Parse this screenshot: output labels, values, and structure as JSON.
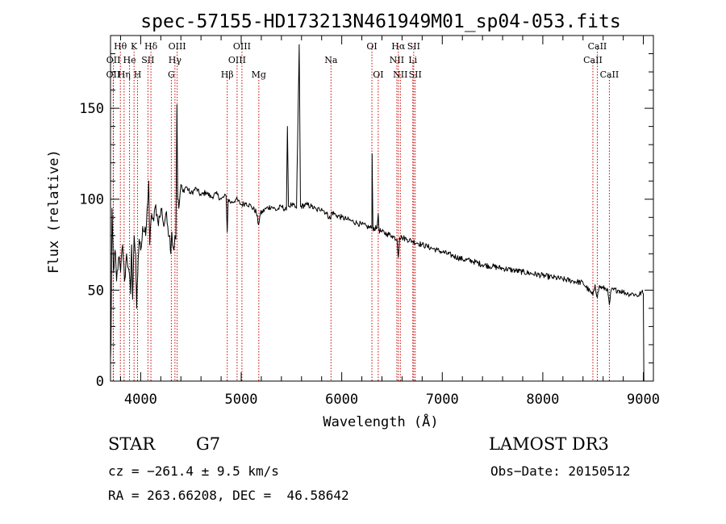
{
  "chart_data": {
    "type": "line",
    "title": "spec-57155-HD173213N461949M01_sp04-053.fits",
    "xlabel": "Wavelength (Å)",
    "ylabel": "Flux (relative)",
    "xlim": [
      3700,
      9100
    ],
    "ylim": [
      0,
      190
    ],
    "x_ticks": [
      4000,
      5000,
      6000,
      7000,
      8000,
      9000
    ],
    "y_ticks": [
      0,
      50,
      100,
      150
    ],
    "grid": false,
    "line_color": "#000000",
    "marker_color": "#cc0000",
    "series": [
      {
        "name": "flux",
        "points": [
          [
            3700,
            12
          ],
          [
            3705,
            22
          ],
          [
            3715,
            95
          ],
          [
            3730,
            60
          ],
          [
            3745,
            72
          ],
          [
            3760,
            55
          ],
          [
            3780,
            68
          ],
          [
            3800,
            60
          ],
          [
            3820,
            75
          ],
          [
            3840,
            55
          ],
          [
            3860,
            70
          ],
          [
            3880,
            62
          ],
          [
            3900,
            48
          ],
          [
            3910,
            75
          ],
          [
            3920,
            45
          ],
          [
            3935,
            80
          ],
          [
            3950,
            70
          ],
          [
            3960,
            40
          ],
          [
            3970,
            58
          ],
          [
            3985,
            78
          ],
          [
            4000,
            72
          ],
          [
            4020,
            85
          ],
          [
            4050,
            80
          ],
          [
            4070,
            98
          ],
          [
            4080,
            110
          ],
          [
            4090,
            75
          ],
          [
            4110,
            92
          ],
          [
            4130,
            88
          ],
          [
            4150,
            97
          ],
          [
            4170,
            88
          ],
          [
            4190,
            90
          ],
          [
            4210,
            95
          ],
          [
            4230,
            85
          ],
          [
            4250,
            92
          ],
          [
            4270,
            85
          ],
          [
            4290,
            80
          ],
          [
            4300,
            70
          ],
          [
            4310,
            82
          ],
          [
            4330,
            72
          ],
          [
            4340,
            80
          ],
          [
            4350,
            78
          ],
          [
            4360,
            152
          ],
          [
            4368,
            100
          ],
          [
            4380,
            95
          ],
          [
            4400,
            108
          ],
          [
            4420,
            104
          ],
          [
            4450,
            107
          ],
          [
            4500,
            103
          ],
          [
            4550,
            106
          ],
          [
            4600,
            102
          ],
          [
            4650,
            104
          ],
          [
            4700,
            101
          ],
          [
            4750,
            103
          ],
          [
            4800,
            100
          ],
          [
            4850,
            102
          ],
          [
            4861,
            82
          ],
          [
            4870,
            100
          ],
          [
            4900,
            98
          ],
          [
            4950,
            100
          ],
          [
            5000,
            97
          ],
          [
            5050,
            98
          ],
          [
            5100,
            96
          ],
          [
            5150,
            93
          ],
          [
            5172,
            86
          ],
          [
            5190,
            92
          ],
          [
            5250,
            95
          ],
          [
            5300,
            96
          ],
          [
            5350,
            94
          ],
          [
            5400,
            96
          ],
          [
            5450,
            94
          ],
          [
            5460,
            140
          ],
          [
            5470,
            96
          ],
          [
            5500,
            97
          ],
          [
            5550,
            95
          ],
          [
            5577,
            185
          ],
          [
            5590,
            96
          ],
          [
            5650,
            97
          ],
          [
            5700,
            96
          ],
          [
            5750,
            94
          ],
          [
            5800,
            95
          ],
          [
            5850,
            92
          ],
          [
            5890,
            89
          ],
          [
            5900,
            93
          ],
          [
            5950,
            91
          ],
          [
            6000,
            90
          ],
          [
            6050,
            89
          ],
          [
            6100,
            88
          ],
          [
            6150,
            87
          ],
          [
            6200,
            86
          ],
          [
            6250,
            85
          ],
          [
            6300,
            84
          ],
          [
            6302,
            125
          ],
          [
            6310,
            84
          ],
          [
            6350,
            84
          ],
          [
            6363,
            92
          ],
          [
            6370,
            83
          ],
          [
            6400,
            82
          ],
          [
            6450,
            81
          ],
          [
            6500,
            80
          ],
          [
            6550,
            78
          ],
          [
            6563,
            68
          ],
          [
            6575,
            79
          ],
          [
            6600,
            79
          ],
          [
            6650,
            78
          ],
          [
            6700,
            77
          ],
          [
            6750,
            76
          ],
          [
            6800,
            75
          ],
          [
            6850,
            74
          ],
          [
            6900,
            73
          ],
          [
            6950,
            72
          ],
          [
            7000,
            71
          ],
          [
            7100,
            69
          ],
          [
            7200,
            67
          ],
          [
            7300,
            66
          ],
          [
            7400,
            64
          ],
          [
            7500,
            63
          ],
          [
            7600,
            62
          ],
          [
            7700,
            61
          ],
          [
            7800,
            60
          ],
          [
            7900,
            59
          ],
          [
            8000,
            58
          ],
          [
            8100,
            57
          ],
          [
            8200,
            56
          ],
          [
            8300,
            55
          ],
          [
            8400,
            54
          ],
          [
            8498,
            47
          ],
          [
            8520,
            53
          ],
          [
            8542,
            46
          ],
          [
            8560,
            52
          ],
          [
            8600,
            51
          ],
          [
            8640,
            51
          ],
          [
            8662,
            42
          ],
          [
            8680,
            50
          ],
          [
            8750,
            50
          ],
          [
            8800,
            49
          ],
          [
            8850,
            48
          ],
          [
            8900,
            48
          ],
          [
            8950,
            47
          ],
          [
            8985,
            49
          ],
          [
            9000,
            48
          ],
          [
            9005,
            0
          ]
        ]
      }
    ],
    "lines": [
      {
        "label": "OII",
        "wavelength": 3727,
        "row": 2
      },
      {
        "label": "OII",
        "wavelength": 3729,
        "row": 1
      },
      {
        "label": "Hθ",
        "wavelength": 3798,
        "row": 0
      },
      {
        "label": "Hη",
        "wavelength": 3835,
        "row": 2
      },
      {
        "label": "He",
        "wavelength": 3889,
        "row": 1
      },
      {
        "label": "K",
        "wavelength": 3934,
        "row": 0
      },
      {
        "label": "H",
        "wavelength": 3969,
        "row": 2
      },
      {
        "label": "SII",
        "wavelength": 4072,
        "row": 1
      },
      {
        "label": "Hδ",
        "wavelength": 4102,
        "row": 0
      },
      {
        "label": "G",
        "wavelength": 4305,
        "row": 2
      },
      {
        "label": "Hγ",
        "wavelength": 4341,
        "row": 1
      },
      {
        "label": "OIII",
        "wavelength": 4363,
        "row": 0
      },
      {
        "label": "Hβ",
        "wavelength": 4861,
        "row": 2
      },
      {
        "label": "OIII",
        "wavelength": 4959,
        "row": 1
      },
      {
        "label": "OIII",
        "wavelength": 5007,
        "row": 0
      },
      {
        "label": "Mg",
        "wavelength": 5175,
        "row": 2
      },
      {
        "label": "Na",
        "wavelength": 5893,
        "row": 1
      },
      {
        "label": "OI",
        "wavelength": 6300,
        "row": 0
      },
      {
        "label": "OI",
        "wavelength": 6363,
        "row": 2
      },
      {
        "label": "NII",
        "wavelength": 6548,
        "row": 1
      },
      {
        "label": "Hα",
        "wavelength": 6563,
        "row": 0
      },
      {
        "label": "NII",
        "wavelength": 6583,
        "row": 2
      },
      {
        "label": "Li",
        "wavelength": 6707,
        "row": 1
      },
      {
        "label": "SII",
        "wavelength": 6716,
        "row": 0
      },
      {
        "label": "SII",
        "wavelength": 6731,
        "row": 2
      },
      {
        "label": "CaII",
        "wavelength": 8498,
        "row": 1
      },
      {
        "label": "CaII",
        "wavelength": 8542,
        "row": 0
      },
      {
        "label": "CaII",
        "wavelength": 8662,
        "row": 2
      }
    ]
  },
  "info": {
    "object_class": "STAR",
    "subclass": "G7",
    "survey": "LAMOST DR3",
    "redshift": "cz = −261.4 ± 9.5 km/s",
    "obs_date": "Obs−Date: 20150512",
    "coordinates": "RA = 263.66208, DEC =  46.58642"
  }
}
